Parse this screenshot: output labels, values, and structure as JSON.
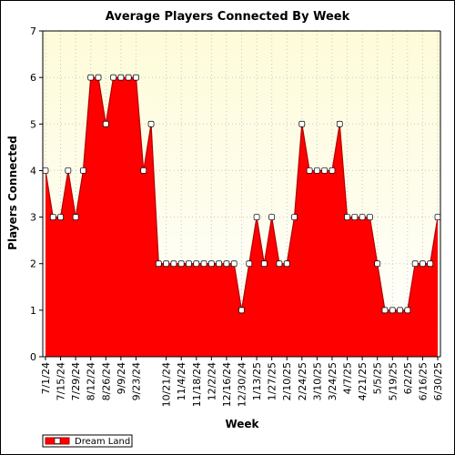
{
  "chart_data": {
    "type": "area",
    "title": "Average Players Connected By Week",
    "xlabel": "Week",
    "ylabel": "Players Connected",
    "ylim": [
      0,
      7
    ],
    "yticks": [
      0,
      1,
      2,
      3,
      4,
      5,
      6,
      7
    ],
    "grid": true,
    "legend_placement": "bottom-left",
    "x": [
      "7/1/24",
      "7/8/24",
      "7/15/24",
      "7/22/24",
      "7/29/24",
      "8/5/24",
      "8/12/24",
      "8/19/24",
      "8/26/24",
      "9/2/24",
      "9/9/24",
      "9/16/24",
      "9/23/24",
      "9/30/24",
      "10/7/24",
      "10/14/24",
      "10/21/24",
      "10/28/24",
      "11/4/24",
      "11/11/24",
      "11/18/24",
      "11/25/24",
      "12/2/24",
      "12/9/24",
      "12/16/24",
      "12/23/24",
      "12/30/24",
      "1/6/25",
      "1/13/25",
      "1/20/25",
      "1/27/25",
      "2/3/25",
      "2/10/25",
      "2/17/25",
      "2/24/25",
      "3/3/25",
      "3/10/25",
      "3/17/25",
      "3/24/25",
      "3/31/25",
      "4/7/25",
      "4/14/25",
      "4/21/25",
      "4/28/25",
      "5/5/25",
      "5/12/25",
      "5/19/25",
      "5/26/25",
      "6/2/25",
      "6/9/25",
      "6/16/25",
      "6/23/25",
      "6/30/25"
    ],
    "xtick_labels": [
      "7/1/24",
      "7/15/24",
      "7/29/24",
      "8/12/24",
      "8/26/24",
      "9/9/24",
      "9/23/24",
      "10/21/24",
      "11/4/24",
      "11/18/24",
      "12/2/24",
      "12/16/24",
      "12/30/24",
      "1/13/25",
      "1/27/25",
      "2/10/25",
      "2/24/25",
      "3/10/25",
      "3/24/25",
      "4/7/25",
      "4/21/25",
      "5/5/25",
      "5/19/25",
      "6/2/25",
      "6/16/25",
      "6/30/25"
    ],
    "series": [
      {
        "name": "Dream Land",
        "color": "#ff0000",
        "values": [
          4,
          3,
          3,
          4,
          3,
          4,
          6,
          6,
          5,
          6,
          6,
          6,
          6,
          4,
          5,
          2,
          2,
          2,
          2,
          2,
          2,
          2,
          2,
          2,
          2,
          2,
          1,
          2,
          3,
          2,
          3,
          2,
          2,
          3,
          5,
          4,
          4,
          4,
          4,
          5,
          3,
          3,
          3,
          3,
          2,
          1,
          1,
          1,
          1,
          2,
          2,
          2,
          3
        ]
      }
    ],
    "colors": {
      "plot_background_top": "#fdfbd8",
      "plot_background_bottom": "#ffffff",
      "area_fill": "#ff0000",
      "line": "#b00000",
      "marker_fill": "#ffffff"
    }
  }
}
